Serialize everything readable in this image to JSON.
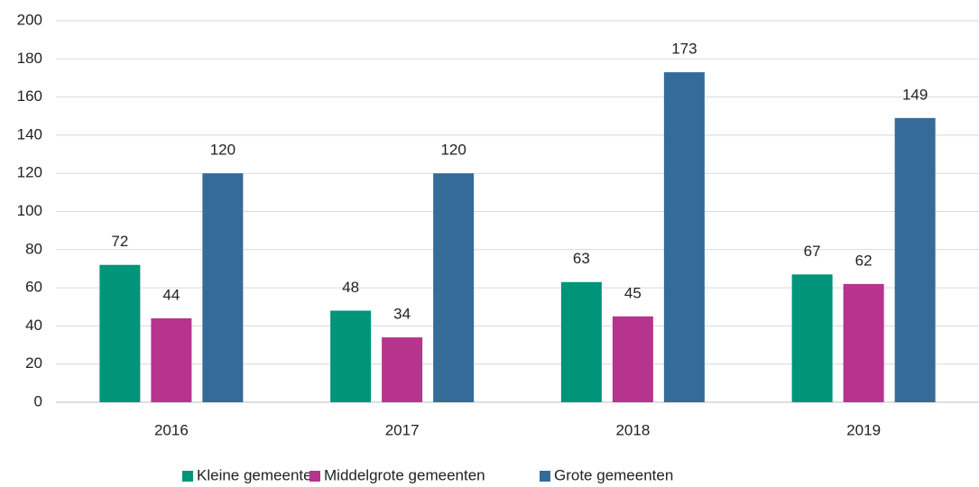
{
  "chart_data": {
    "type": "bar",
    "categories": [
      "2016",
      "2017",
      "2018",
      "2019"
    ],
    "series": [
      {
        "name": "Kleine gemeenten",
        "color": "#00957a",
        "values": [
          72,
          48,
          63,
          67
        ]
      },
      {
        "name": "Middelgrote gemeenten",
        "color": "#b6348d",
        "values": [
          44,
          34,
          45,
          62
        ]
      },
      {
        "name": "Grote gemeenten",
        "color": "#346b99",
        "values": [
          120,
          120,
          173,
          149
        ]
      }
    ],
    "ylim": [
      0,
      200
    ],
    "yticks": [
      0,
      20,
      40,
      60,
      80,
      100,
      120,
      140,
      160,
      180,
      200
    ],
    "grid": true,
    "legend": "bottom",
    "data_labels": true
  }
}
